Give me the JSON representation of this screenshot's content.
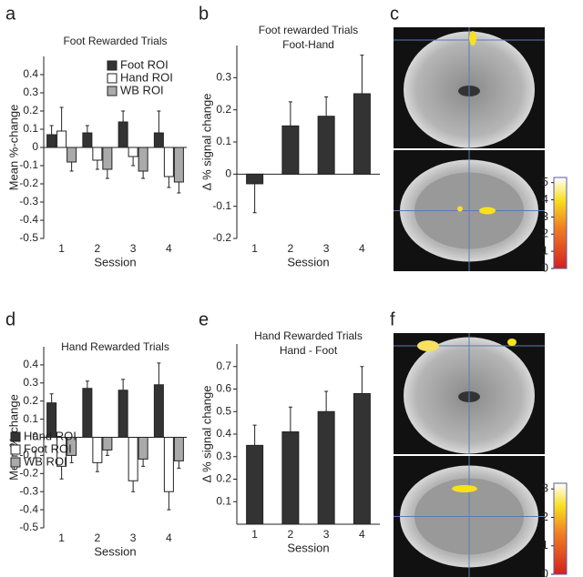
{
  "chart_data": [
    {
      "type": "grouped-bar",
      "label": "a",
      "title": "Foot Rewarded Trials",
      "ylabel": "Mean %-change",
      "xlabel": "Session",
      "categories": [
        "1",
        "2",
        "3",
        "4"
      ],
      "ylim": [
        -0.5,
        0.5
      ],
      "yticks": [
        0.4,
        0.3,
        0.2,
        0.1,
        0,
        -0.1,
        -0.2,
        -0.3,
        -0.4,
        -0.5
      ],
      "legend": "upper right",
      "series": [
        {
          "name": "Foot ROI",
          "color": "#333333",
          "values": [
            0.07,
            0.08,
            0.14,
            0.08
          ],
          "errors": [
            0.05,
            0.04,
            0.06,
            0.12
          ]
        },
        {
          "name": "Hand ROI",
          "color": "#ffffff",
          "values": [
            0.09,
            -0.07,
            -0.05,
            -0.16
          ],
          "errors": [
            0.13,
            0.05,
            0.05,
            0.06
          ]
        },
        {
          "name": "WB ROI",
          "color": "#aaaaaa",
          "values": [
            -0.08,
            -0.12,
            -0.13,
            -0.19
          ],
          "errors": [
            0.05,
            0.05,
            0.04,
            0.06
          ]
        }
      ]
    },
    {
      "type": "bar",
      "label": "b",
      "title": "Foot rewarded Trials",
      "subtitle": "Foot-Hand",
      "ylabel": "Δ % signal change",
      "xlabel": "Session",
      "categories": [
        "1",
        "2",
        "3",
        "4"
      ],
      "ylim": [
        -0.2,
        0.4
      ],
      "yticks": [
        0.3,
        0.2,
        0.1,
        0,
        -0.1,
        -0.2
      ],
      "color": "#333333",
      "values": [
        -0.03,
        0.15,
        0.18,
        0.25
      ],
      "errors": [
        0.09,
        0.075,
        0.06,
        0.12
      ]
    },
    {
      "type": "image",
      "label": "c",
      "clim": [
        0,
        5.3
      ],
      "colorbar_ticks": [
        5,
        4,
        3,
        2,
        1,
        0
      ]
    },
    {
      "type": "grouped-bar",
      "label": "d",
      "title": "Hand Rewarded Trials",
      "ylabel": "Mean %-change",
      "xlabel": "Session",
      "categories": [
        "1",
        "2",
        "3",
        "4"
      ],
      "ylim": [
        -0.5,
        0.5
      ],
      "yticks": [
        0.4,
        0.3,
        0.2,
        0.1,
        0,
        -0.1,
        -0.2,
        -0.3,
        -0.4,
        -0.5
      ],
      "legend": "lower left",
      "series": [
        {
          "name": "Hand ROI",
          "color": "#333333",
          "values": [
            0.19,
            0.27,
            0.26,
            0.29
          ],
          "errors": [
            0.05,
            0.04,
            0.06,
            0.12
          ]
        },
        {
          "name": "Foot ROI",
          "color": "#ffffff",
          "values": [
            -0.16,
            -0.14,
            -0.24,
            -0.3
          ],
          "errors": [
            0.07,
            0.05,
            0.06,
            0.1
          ]
        },
        {
          "name": "WB ROI",
          "color": "#aaaaaa",
          "values": [
            -0.1,
            -0.07,
            -0.12,
            -0.13
          ],
          "errors": [
            0.04,
            0.03,
            0.04,
            0.04
          ]
        }
      ]
    },
    {
      "type": "bar",
      "label": "e",
      "title": "Hand Rewarded Trials",
      "subtitle": "Hand - Foot",
      "ylabel": "Δ % signal change",
      "xlabel": "Session",
      "categories": [
        "1",
        "2",
        "3",
        "4"
      ],
      "ylim": [
        0,
        0.8
      ],
      "yticks": [
        0.7,
        0.6,
        0.5,
        0.4,
        0.3,
        0.2,
        0.1
      ],
      "color": "#333333",
      "values": [
        0.35,
        0.41,
        0.5,
        0.58
      ],
      "errors": [
        0.09,
        0.11,
        0.09,
        0.12
      ]
    },
    {
      "type": "image",
      "label": "f",
      "clim": [
        0,
        3.2
      ],
      "colorbar_ticks": [
        3,
        2,
        1,
        0
      ]
    }
  ]
}
